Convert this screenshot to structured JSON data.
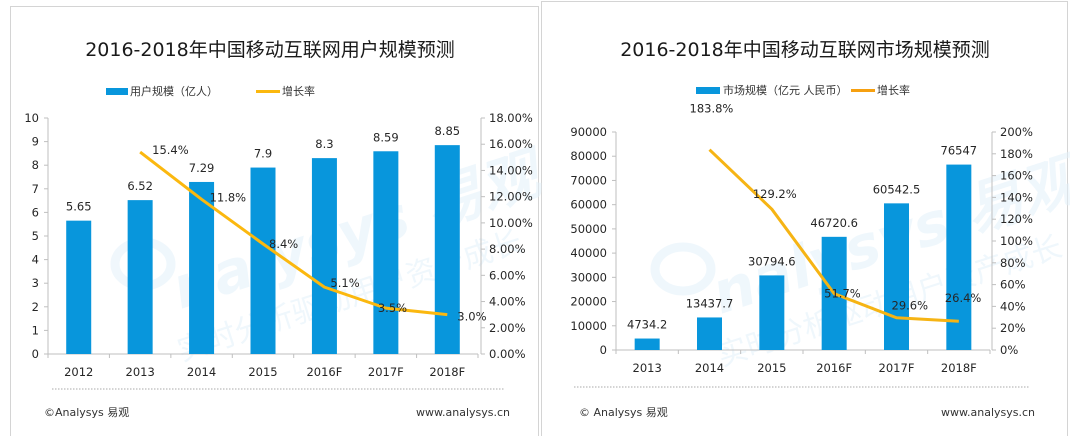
{
  "colors": {
    "bar": "#0896dc",
    "line": "#fbb80f",
    "axis": "#bfbfbf",
    "text": "#262626",
    "watermark": "#e3f1fa"
  },
  "chart_data": [
    {
      "type": "bar+line",
      "title": "2016-2018年中国移动互联网用户规模预测",
      "categories": [
        "2012",
        "2013",
        "2014",
        "2015",
        "2016F",
        "2017F",
        "2018F"
      ],
      "series": [
        {
          "name": "用户规模（亿人）",
          "type": "bar",
          "axis": "left",
          "values": [
            5.65,
            6.52,
            7.29,
            7.9,
            8.3,
            8.59,
            8.85
          ],
          "labels": [
            "5.65",
            "6.52",
            "7.29",
            "7.9",
            "8.3",
            "8.59",
            "8.85"
          ]
        },
        {
          "name": "增长率",
          "type": "line",
          "axis": "right",
          "values": [
            null,
            15.4,
            11.8,
            8.4,
            5.1,
            3.5,
            3.0
          ],
          "labels": [
            "",
            "15.4%",
            "11.8%",
            "8.4%",
            "5.1%",
            "3.5%",
            "3.0%"
          ]
        }
      ],
      "y_left": {
        "min": 0,
        "max": 10,
        "ticks": [
          "0",
          "1",
          "2",
          "3",
          "4",
          "5",
          "6",
          "7",
          "8",
          "9",
          "10"
        ]
      },
      "y_right": {
        "min": 0,
        "max": 18,
        "ticks": [
          "0.00%",
          "2.00%",
          "4.00%",
          "6.00%",
          "8.00%",
          "10.00%",
          "12.00%",
          "14.00%",
          "16.00%",
          "18.00%"
        ]
      },
      "legend": {
        "position": "top",
        "items": [
          "用户规模（亿人）",
          "增长率"
        ]
      },
      "grid": false,
      "footer": {
        "left": "©Analysys 易观",
        "right": "www.analysys.cn"
      }
    },
    {
      "type": "bar+line",
      "title": "2016-2018年中国移动互联网市场规模预测",
      "categories": [
        "2013",
        "2014",
        "2015",
        "2016F",
        "2017F",
        "2018F"
      ],
      "series": [
        {
          "name": "市场规模（亿元 人民币）",
          "type": "bar",
          "axis": "left",
          "values": [
            4734.2,
            13437.7,
            30794.6,
            46720.6,
            60542.5,
            76547
          ],
          "labels": [
            "4734.2",
            "13437.7",
            "30794.6",
            "46720.6",
            "60542.5",
            "76547"
          ]
        },
        {
          "name": "增长率",
          "type": "line",
          "axis": "right",
          "values": [
            null,
            183.8,
            129.2,
            51.7,
            29.6,
            26.4
          ],
          "labels": [
            "",
            "183.8%",
            "129.2%",
            "51.7%",
            "29.6%",
            "26.4%"
          ]
        }
      ],
      "y_left": {
        "min": 0,
        "max": 90000,
        "ticks": [
          "0",
          "10000",
          "20000",
          "30000",
          "40000",
          "50000",
          "60000",
          "70000",
          "80000",
          "90000"
        ]
      },
      "y_right": {
        "min": 0,
        "max": 200,
        "ticks": [
          "0%",
          "20%",
          "40%",
          "60%",
          "80%",
          "100%",
          "120%",
          "140%",
          "160%",
          "180%",
          "200%"
        ]
      },
      "legend": {
        "position": "top",
        "items": [
          "市场规模（亿元 人民币）",
          "增长率"
        ]
      },
      "grid": false,
      "footer": {
        "left": "© Analysys 易观",
        "right": "www.analysys.cn"
      }
    }
  ],
  "watermark": {
    "brand": "Analysys 易观",
    "slogan": "实时分析驱动用户资产成长"
  }
}
